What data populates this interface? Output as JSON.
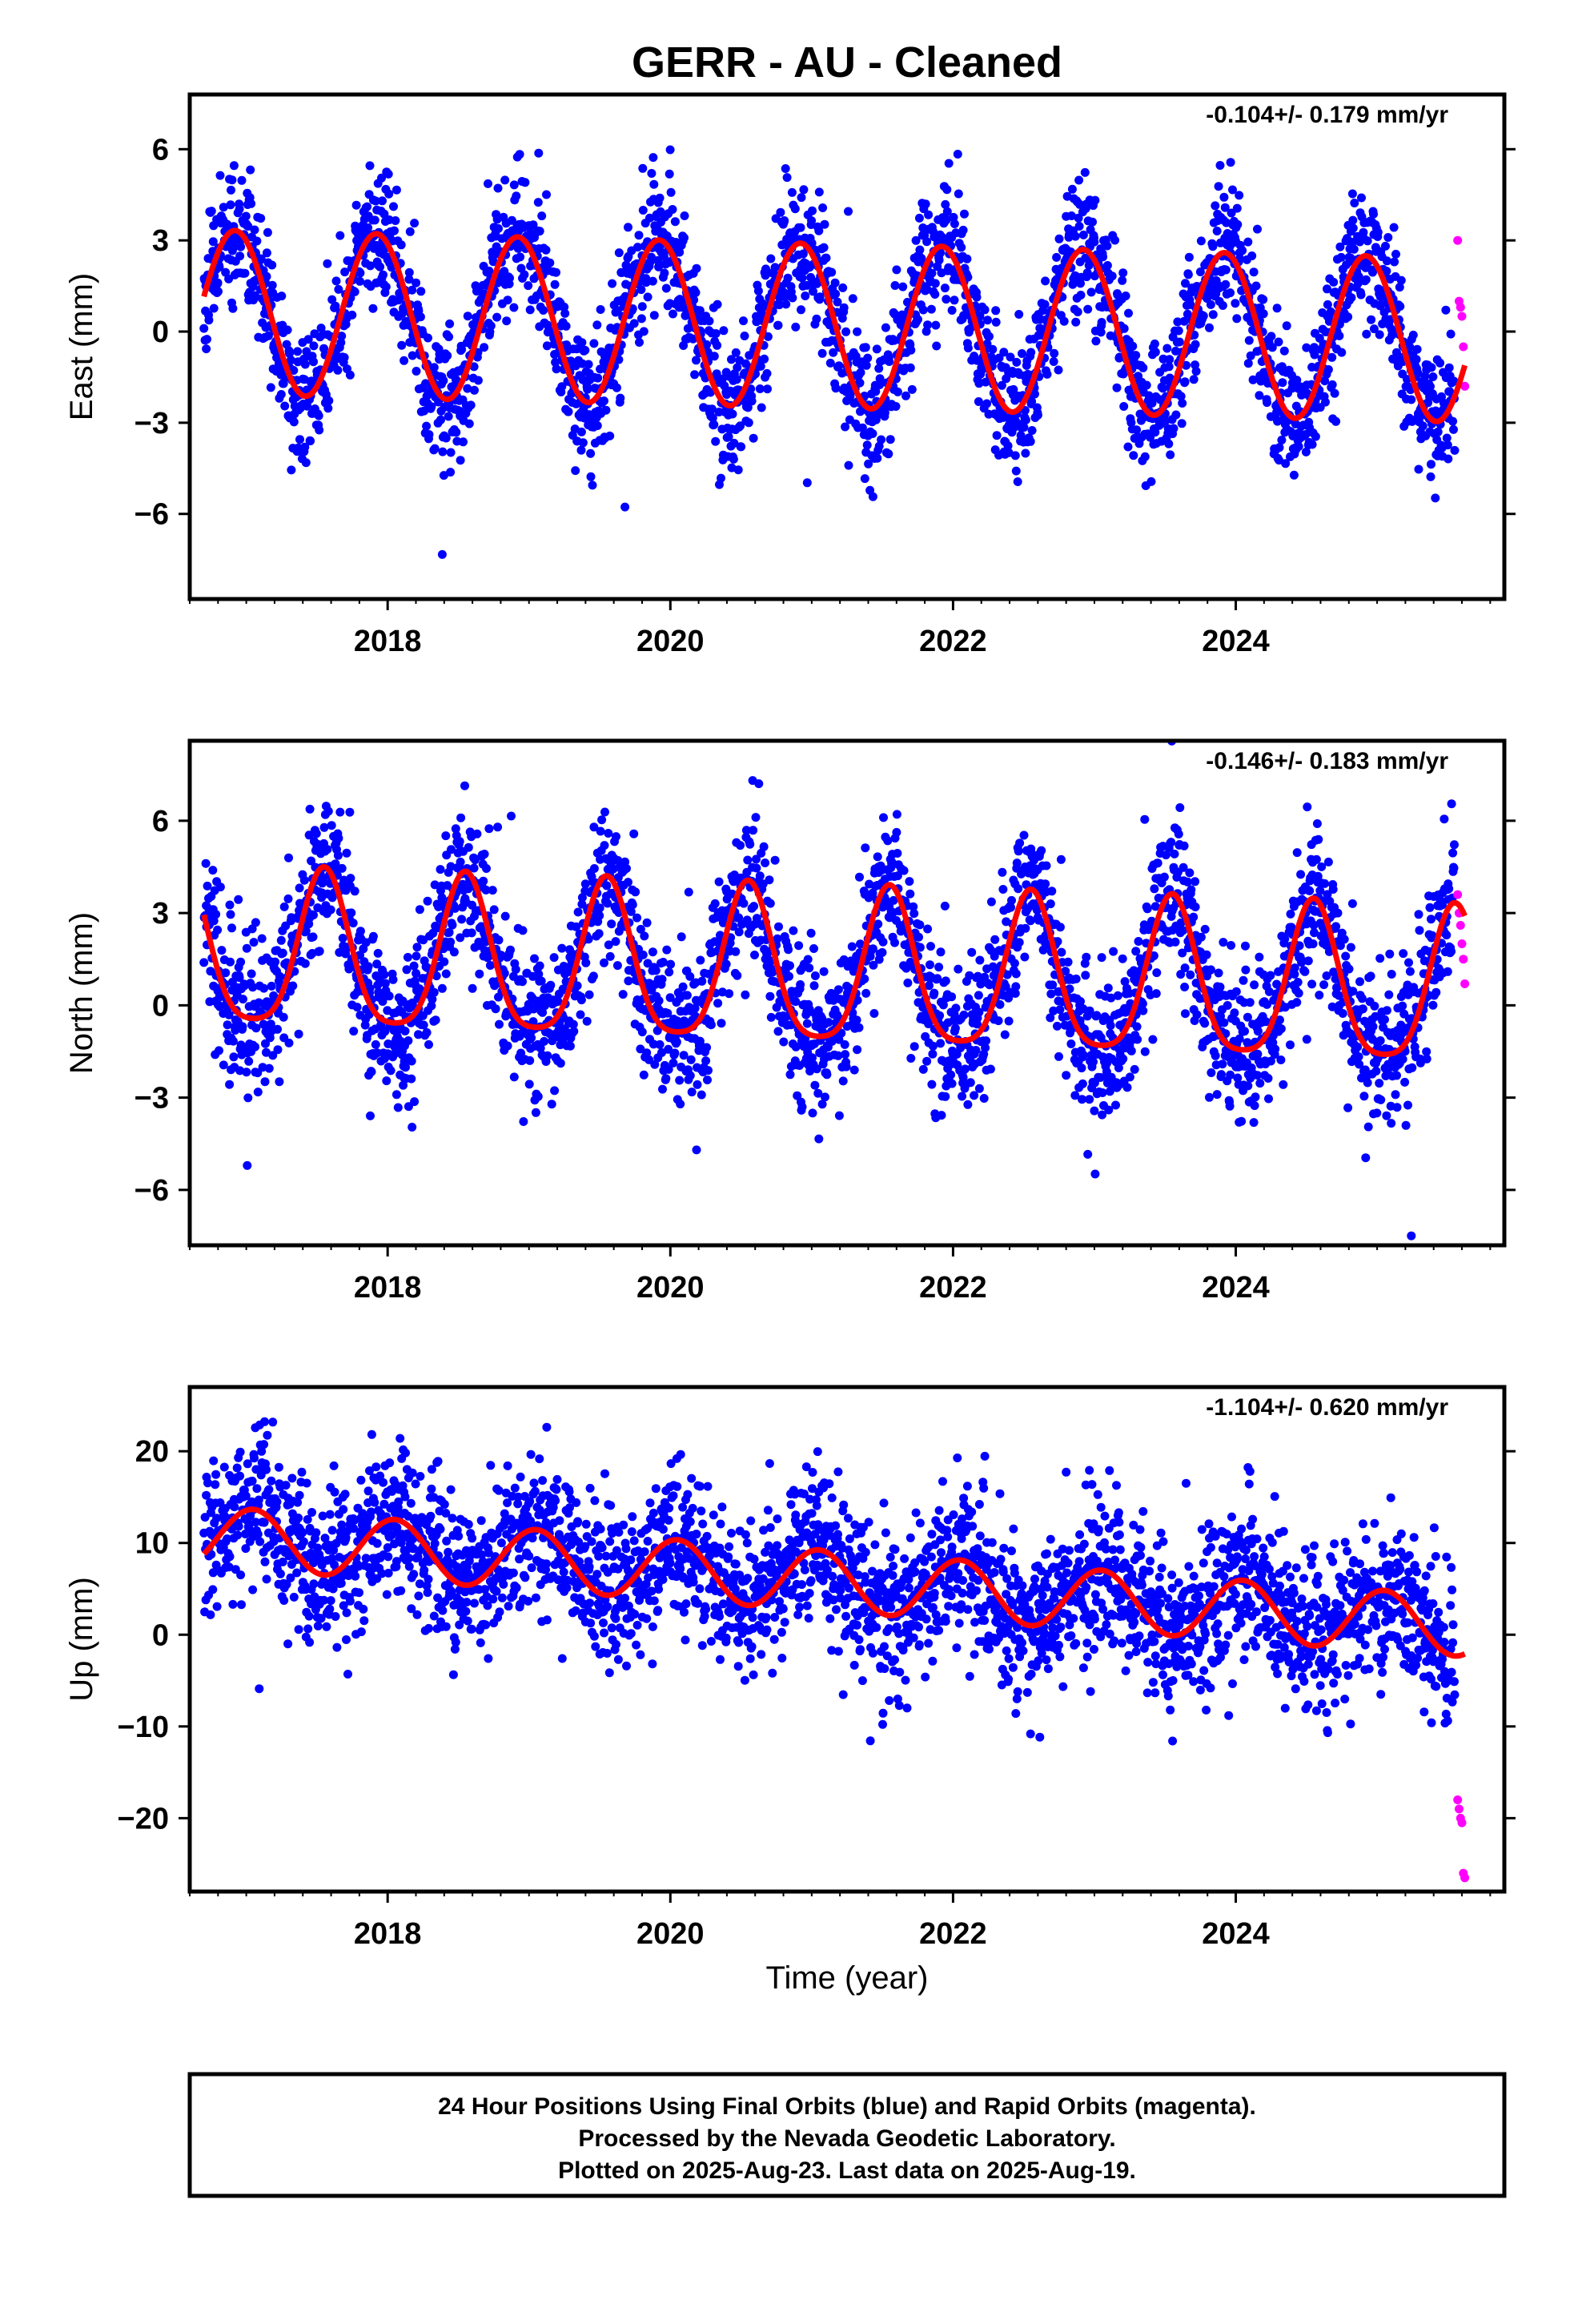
{
  "figure": {
    "title": "GERR  - AU - Cleaned",
    "xlabel": "Time (year)",
    "footer": [
      "24 Hour Positions Using Final Orbits (blue) and Rapid Orbits (magenta).",
      "Processed by the Nevada Geodetic Laboratory.",
      "Plotted on 2025-Aug-23. Last data on 2025-Aug-19."
    ]
  },
  "colors": {
    "final_orbits": "#0000ff",
    "rapid_orbits": "#ff00ff",
    "model_fit": "#ff0000",
    "frame": "#000000"
  },
  "chart_data": [
    {
      "type": "scatter",
      "name": "East",
      "ylabel": "East (mm)",
      "rate_label": "-0.104+/- 0.179 mm/yr",
      "xlim": [
        2016.6,
        2025.9
      ],
      "ylim": [
        -8.8,
        7.8
      ],
      "xticks": [
        2018,
        2020,
        2022,
        2024
      ],
      "yticks": [
        -6,
        -3,
        0,
        3,
        6
      ],
      "model": {
        "offset": 0.2,
        "trend": -0.104,
        "annual_amp": 2.7,
        "annual_peak": 2016.92,
        "semi_amp": 0.0,
        "semi_peak": 0.0
      },
      "series": [
        {
          "name": "Final Orbits",
          "color": "#0000ff",
          "x_range": [
            2016.7,
            2025.55
          ],
          "sigma": 1.1,
          "seed": 11
        },
        {
          "name": "Rapid Orbits",
          "color": "#ff00ff",
          "x": [
            2025.57,
            2025.58,
            2025.59,
            2025.6,
            2025.61,
            2025.62
          ],
          "y": [
            3.0,
            1.0,
            0.8,
            0.5,
            -0.5,
            -1.8
          ]
        },
        {
          "name": "Model Fit",
          "color": "#ff0000",
          "x_range": [
            2016.7,
            2025.62
          ]
        }
      ]
    },
    {
      "type": "scatter",
      "name": "North",
      "ylabel": "North (mm)",
      "rate_label": "-0.146+/- 0.183 mm/yr",
      "xlim": [
        2016.6,
        2025.9
      ],
      "ylim": [
        -7.8,
        8.6
      ],
      "xticks": [
        2018,
        2020,
        2022,
        2024
      ],
      "yticks": [
        -6,
        -3,
        0,
        3,
        6
      ],
      "model": {
        "offset": 1.0,
        "trend": -0.146,
        "annual_amp": 2.5,
        "annual_peak": 2017.55,
        "semi_amp": 0.5,
        "semi_peak": 2017.55
      },
      "series": [
        {
          "name": "Final Orbits",
          "color": "#0000ff",
          "x_range": [
            2016.7,
            2025.55
          ],
          "sigma": 1.2,
          "seed": 23
        },
        {
          "name": "Rapid Orbits",
          "color": "#ff00ff",
          "x": [
            2025.57,
            2025.58,
            2025.59,
            2025.6,
            2025.61,
            2025.62
          ],
          "y": [
            3.6,
            3.0,
            2.6,
            2.0,
            1.5,
            0.7
          ]
        },
        {
          "name": "Model Fit",
          "color": "#ff0000",
          "x_range": [
            2016.7,
            2025.62
          ]
        }
      ]
    },
    {
      "type": "scatter",
      "name": "Up",
      "ylabel": "Up (mm)",
      "rate_label": "-1.104+/- 0.620 mm/yr",
      "xlim": [
        2016.6,
        2025.9
      ],
      "ylim": [
        -28.0,
        27.0
      ],
      "xticks": [
        2018,
        2020,
        2022,
        2024
      ],
      "yticks": [
        -20,
        -10,
        0,
        10,
        20
      ],
      "model": {
        "offset": 6.0,
        "trend": -1.104,
        "annual_amp": 3.3,
        "annual_peak": 2017.05,
        "semi_amp": 0.0,
        "semi_peak": 0.0
      },
      "series": [
        {
          "name": "Final Orbits",
          "color": "#0000ff",
          "x_range": [
            2016.7,
            2025.55
          ],
          "sigma": 4.2,
          "seed": 37
        },
        {
          "name": "Rapid Orbits",
          "color": "#ff00ff",
          "x": [
            2025.57,
            2025.58,
            2025.59,
            2025.6,
            2025.61,
            2025.62
          ],
          "y": [
            -18.0,
            -19.0,
            -20.0,
            -20.5,
            -26.0,
            -26.5
          ]
        },
        {
          "name": "Model Fit",
          "color": "#ff0000",
          "x_range": [
            2016.7,
            2025.62
          ]
        }
      ]
    }
  ]
}
